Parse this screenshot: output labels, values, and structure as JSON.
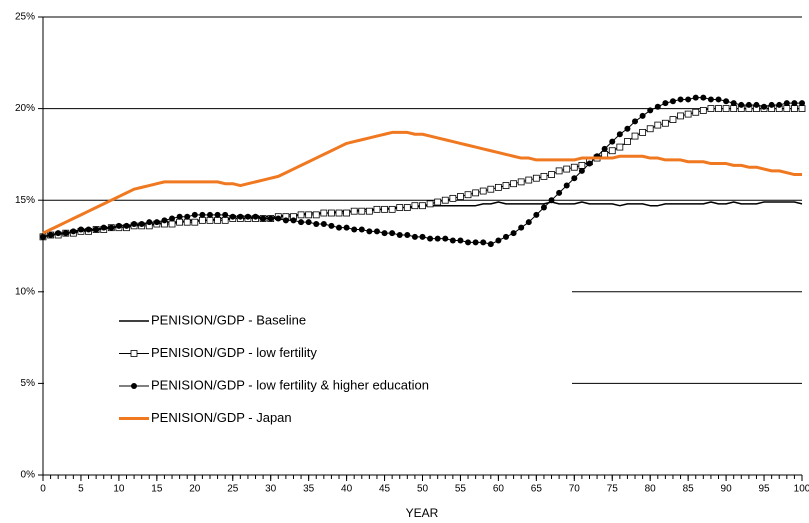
{
  "chart_data": {
    "type": "line",
    "x_label": "YEAR",
    "x": [
      0,
      1,
      2,
      3,
      4,
      5,
      6,
      7,
      8,
      9,
      10,
      11,
      12,
      13,
      14,
      15,
      16,
      17,
      18,
      19,
      20,
      21,
      22,
      23,
      24,
      25,
      26,
      27,
      28,
      29,
      30,
      31,
      32,
      33,
      34,
      35,
      36,
      37,
      38,
      39,
      40,
      41,
      42,
      43,
      44,
      45,
      46,
      47,
      48,
      49,
      50,
      51,
      52,
      53,
      54,
      55,
      56,
      57,
      58,
      59,
      60,
      61,
      62,
      63,
      64,
      65,
      66,
      67,
      68,
      69,
      70,
      71,
      72,
      73,
      74,
      75,
      76,
      77,
      78,
      79,
      80,
      81,
      82,
      83,
      84,
      85,
      86,
      87,
      88,
      89,
      90,
      91,
      92,
      93,
      94,
      95,
      96,
      97,
      98,
      99,
      100
    ],
    "xlim": [
      0,
      100
    ],
    "xticks": [
      0,
      5,
      10,
      15,
      20,
      25,
      30,
      35,
      40,
      45,
      50,
      55,
      60,
      65,
      70,
      75,
      80,
      85,
      90,
      95,
      100
    ],
    "ylim": [
      0,
      25
    ],
    "yticks": [
      {
        "value": 0,
        "label": "0%"
      },
      {
        "value": 5,
        "label": "5%"
      },
      {
        "value": 10,
        "label": "10%"
      },
      {
        "value": 15,
        "label": "15%"
      },
      {
        "value": 20,
        "label": "20%"
      },
      {
        "value": 25,
        "label": "25%"
      }
    ],
    "grid": true,
    "legend": "lower left",
    "series": [
      {
        "name": "PENISION/GDP - Baseline",
        "color": "#000000",
        "marker": "none",
        "line_width": 1.5,
        "values": [
          13.0,
          13.1,
          13.2,
          13.2,
          13.3,
          13.3,
          13.4,
          13.4,
          13.5,
          13.5,
          13.6,
          13.6,
          13.6,
          13.7,
          13.7,
          13.7,
          13.8,
          13.8,
          13.8,
          13.9,
          13.9,
          13.9,
          13.9,
          14.0,
          14.0,
          14.0,
          14.0,
          14.0,
          14.1,
          14.1,
          14.1,
          14.1,
          14.2,
          14.2,
          14.2,
          14.3,
          14.3,
          14.3,
          14.3,
          14.4,
          14.4,
          14.4,
          14.5,
          14.5,
          14.5,
          14.5,
          14.6,
          14.6,
          14.6,
          14.6,
          14.7,
          14.7,
          14.7,
          14.7,
          14.7,
          14.7,
          14.7,
          14.7,
          14.8,
          14.8,
          14.9,
          14.8,
          14.8,
          14.8,
          14.8,
          14.8,
          14.8,
          14.9,
          14.8,
          14.8,
          14.8,
          14.9,
          14.8,
          14.8,
          14.8,
          14.8,
          14.7,
          14.8,
          14.8,
          14.8,
          14.7,
          14.7,
          14.8,
          14.8,
          14.8,
          14.8,
          14.8,
          14.8,
          14.9,
          14.8,
          14.8,
          14.9,
          14.8,
          14.8,
          14.8,
          14.9,
          14.9,
          14.9,
          14.9,
          14.9,
          14.8
        ]
      },
      {
        "name": "PENISION/GDP - low fertility",
        "color": "#000000",
        "marker": "square",
        "line_width": 1,
        "values": [
          13.0,
          13.1,
          13.1,
          13.2,
          13.2,
          13.3,
          13.3,
          13.4,
          13.4,
          13.5,
          13.5,
          13.5,
          13.6,
          13.6,
          13.6,
          13.7,
          13.7,
          13.7,
          13.8,
          13.8,
          13.8,
          13.9,
          13.9,
          13.9,
          13.9,
          14.0,
          14.0,
          14.0,
          14.0,
          14.0,
          14.0,
          14.1,
          14.1,
          14.1,
          14.2,
          14.2,
          14.2,
          14.3,
          14.3,
          14.3,
          14.3,
          14.4,
          14.4,
          14.4,
          14.5,
          14.5,
          14.5,
          14.6,
          14.6,
          14.7,
          14.7,
          14.8,
          14.9,
          15.0,
          15.1,
          15.2,
          15.3,
          15.4,
          15.5,
          15.6,
          15.7,
          15.8,
          15.9,
          16.0,
          16.1,
          16.2,
          16.3,
          16.4,
          16.6,
          16.7,
          16.8,
          16.9,
          17.1,
          17.3,
          17.5,
          17.7,
          17.9,
          18.2,
          18.5,
          18.7,
          18.9,
          19.1,
          19.2,
          19.4,
          19.6,
          19.7,
          19.8,
          19.9,
          20.0,
          20.0,
          20.0,
          20.0,
          20.0,
          20.0,
          20.0,
          20.0,
          20.0,
          20.0,
          20.0,
          20.0,
          20.0
        ]
      },
      {
        "name": "PENISION/GDP - low fertility & higher education",
        "color": "#000000",
        "marker": "circle",
        "line_width": 1,
        "values": [
          13.0,
          13.1,
          13.2,
          13.2,
          13.3,
          13.4,
          13.4,
          13.4,
          13.5,
          13.5,
          13.6,
          13.6,
          13.7,
          13.7,
          13.8,
          13.8,
          13.9,
          14.0,
          14.1,
          14.1,
          14.2,
          14.2,
          14.2,
          14.2,
          14.2,
          14.1,
          14.1,
          14.1,
          14.1,
          14.0,
          14.0,
          14.0,
          13.9,
          13.9,
          13.8,
          13.8,
          13.7,
          13.7,
          13.6,
          13.5,
          13.5,
          13.4,
          13.4,
          13.3,
          13.3,
          13.2,
          13.2,
          13.1,
          13.1,
          13.0,
          13.0,
          12.9,
          12.9,
          12.9,
          12.8,
          12.8,
          12.7,
          12.7,
          12.7,
          12.6,
          12.8,
          13.0,
          13.2,
          13.5,
          13.8,
          14.2,
          14.6,
          15.0,
          15.4,
          15.8,
          16.2,
          16.6,
          17.0,
          17.4,
          17.8,
          18.2,
          18.6,
          18.9,
          19.3,
          19.6,
          19.9,
          20.1,
          20.3,
          20.4,
          20.5,
          20.5,
          20.6,
          20.6,
          20.5,
          20.5,
          20.4,
          20.3,
          20.2,
          20.2,
          20.2,
          20.1,
          20.2,
          20.2,
          20.3,
          20.3,
          20.3
        ]
      },
      {
        "name": "PENISION/GDP - Japan",
        "color": "#f07820",
        "marker": "none",
        "line_width": 3,
        "values": [
          13.2,
          13.4,
          13.6,
          13.8,
          14.0,
          14.2,
          14.4,
          14.6,
          14.8,
          15.0,
          15.2,
          15.4,
          15.6,
          15.7,
          15.8,
          15.9,
          16.0,
          16.0,
          16.0,
          16.0,
          16.0,
          16.0,
          16.0,
          16.0,
          15.9,
          15.9,
          15.8,
          15.9,
          16.0,
          16.1,
          16.2,
          16.3,
          16.5,
          16.7,
          16.9,
          17.1,
          17.3,
          17.5,
          17.7,
          17.9,
          18.1,
          18.2,
          18.3,
          18.4,
          18.5,
          18.6,
          18.7,
          18.7,
          18.7,
          18.6,
          18.6,
          18.5,
          18.4,
          18.3,
          18.2,
          18.1,
          18.0,
          17.9,
          17.8,
          17.7,
          17.6,
          17.5,
          17.4,
          17.3,
          17.3,
          17.2,
          17.2,
          17.2,
          17.2,
          17.2,
          17.2,
          17.3,
          17.3,
          17.3,
          17.3,
          17.3,
          17.4,
          17.4,
          17.4,
          17.4,
          17.3,
          17.3,
          17.2,
          17.2,
          17.2,
          17.1,
          17.1,
          17.1,
          17.0,
          17.0,
          17.0,
          16.9,
          16.9,
          16.8,
          16.8,
          16.7,
          16.6,
          16.6,
          16.5,
          16.4,
          16.4
        ]
      }
    ]
  }
}
